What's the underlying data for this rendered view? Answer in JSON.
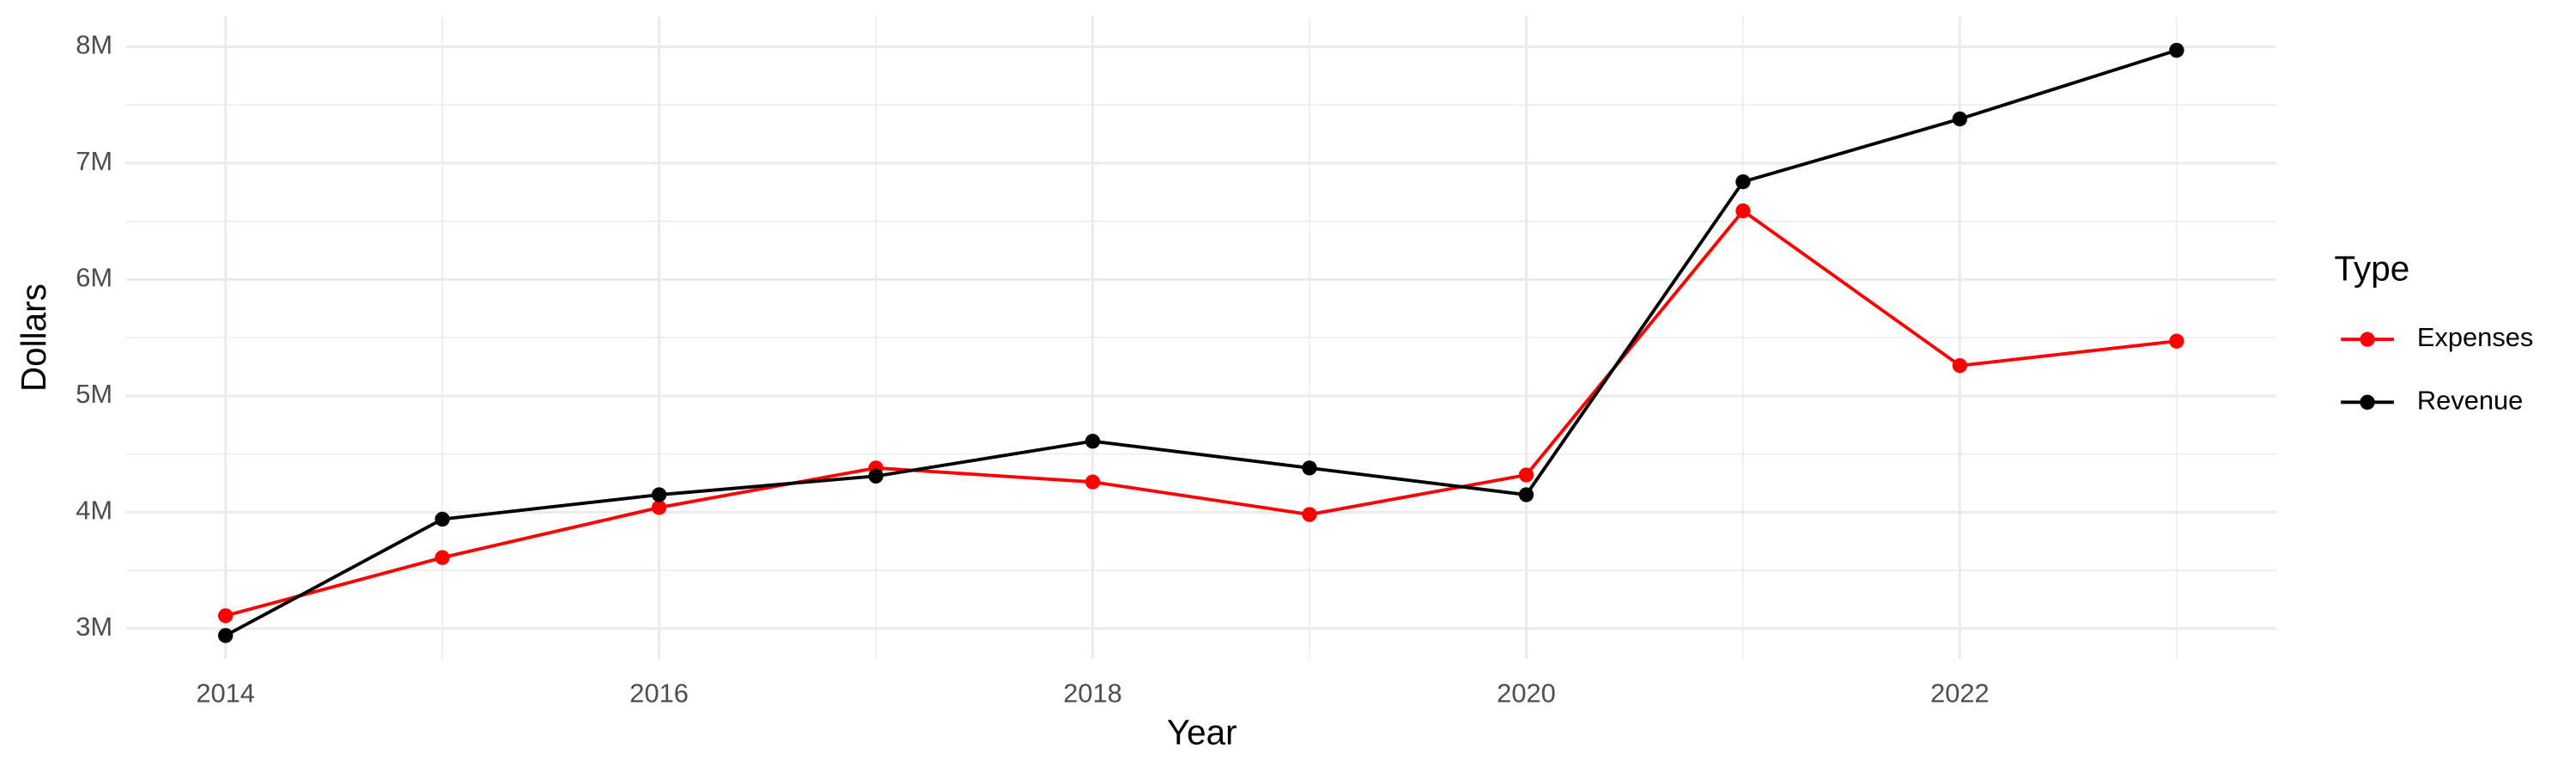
{
  "chart_data": {
    "type": "line",
    "x_label": "Year",
    "y_label": "Dollars",
    "x": [
      2014,
      2015,
      2016,
      2017,
      2018,
      2019,
      2020,
      2021,
      2022,
      2023
    ],
    "series": [
      {
        "name": "Expenses",
        "color": "#ff0000",
        "values": [
          3110000,
          3610000,
          4040000,
          4380000,
          4260000,
          3980000,
          4320000,
          6590000,
          5260000,
          5470000
        ]
      },
      {
        "name": "Revenue",
        "color": "#000000",
        "values": [
          2940000,
          3940000,
          4150000,
          4310000,
          4610000,
          4380000,
          4150000,
          6840000,
          7380000,
          7970000
        ]
      }
    ],
    "xlim": [
      2013.54,
      2023.46
    ],
    "xticks": [
      2014,
      2016,
      2018,
      2020,
      2022
    ],
    "ylim": [
      2740000,
      8260000
    ],
    "yticks": [
      {
        "value": 3000000,
        "label": "3M"
      },
      {
        "value": 4000000,
        "label": "4M"
      },
      {
        "value": 5000000,
        "label": "5M"
      },
      {
        "value": 6000000,
        "label": "6M"
      },
      {
        "value": 7000000,
        "label": "7M"
      },
      {
        "value": 8000000,
        "label": "8M"
      }
    ],
    "grid": true,
    "legend_title": "Type",
    "legend_position": "right"
  }
}
